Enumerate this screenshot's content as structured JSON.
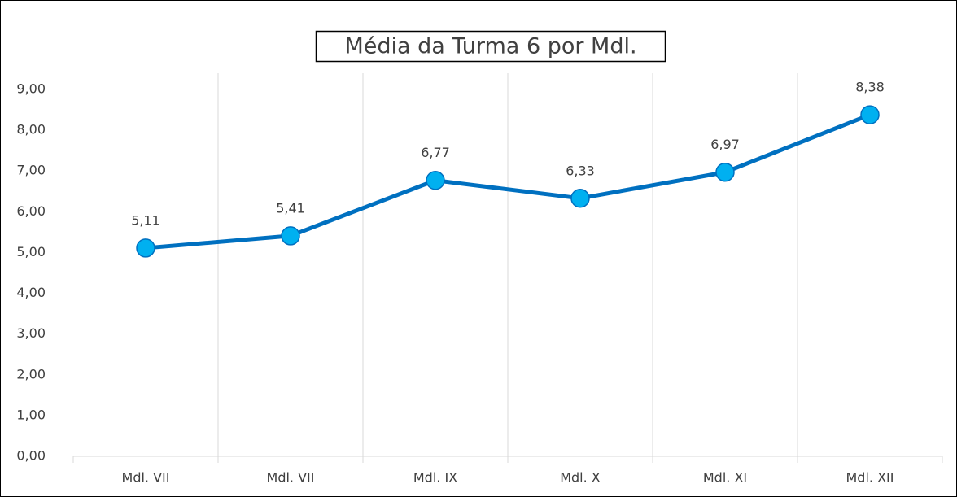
{
  "chart_data": {
    "type": "line",
    "title": "Média da Turma 6 por Mdl.",
    "categories": [
      "Mdl. VII",
      "Mdl. VII",
      "Mdl. IX",
      "Mdl. X",
      "Mdl. XI",
      "Mdl. XII"
    ],
    "series": [
      {
        "color": "#0070c0",
        "marker_color": "#00b0f0",
        "values": [
          5.11,
          5.41,
          6.77,
          6.33,
          6.97,
          8.38
        ],
        "value_labels": [
          "5,11",
          "5,41",
          "6,77",
          "6,33",
          "6,97",
          "8,38"
        ]
      }
    ],
    "ylim": [
      0,
      9
    ],
    "yticks": [
      {
        "value": 0,
        "label": "0,00"
      },
      {
        "value": 1,
        "label": "1,00"
      },
      {
        "value": 2,
        "label": "2,00"
      },
      {
        "value": 3,
        "label": "3,00"
      },
      {
        "value": 4,
        "label": "4,00"
      },
      {
        "value": 5,
        "label": "5,00"
      },
      {
        "value": 6,
        "label": "6,00"
      },
      {
        "value": 7,
        "label": "7,00"
      },
      {
        "value": 8,
        "label": "8,00"
      },
      {
        "value": 9,
        "label": "9,00"
      }
    ],
    "grid": true
  }
}
